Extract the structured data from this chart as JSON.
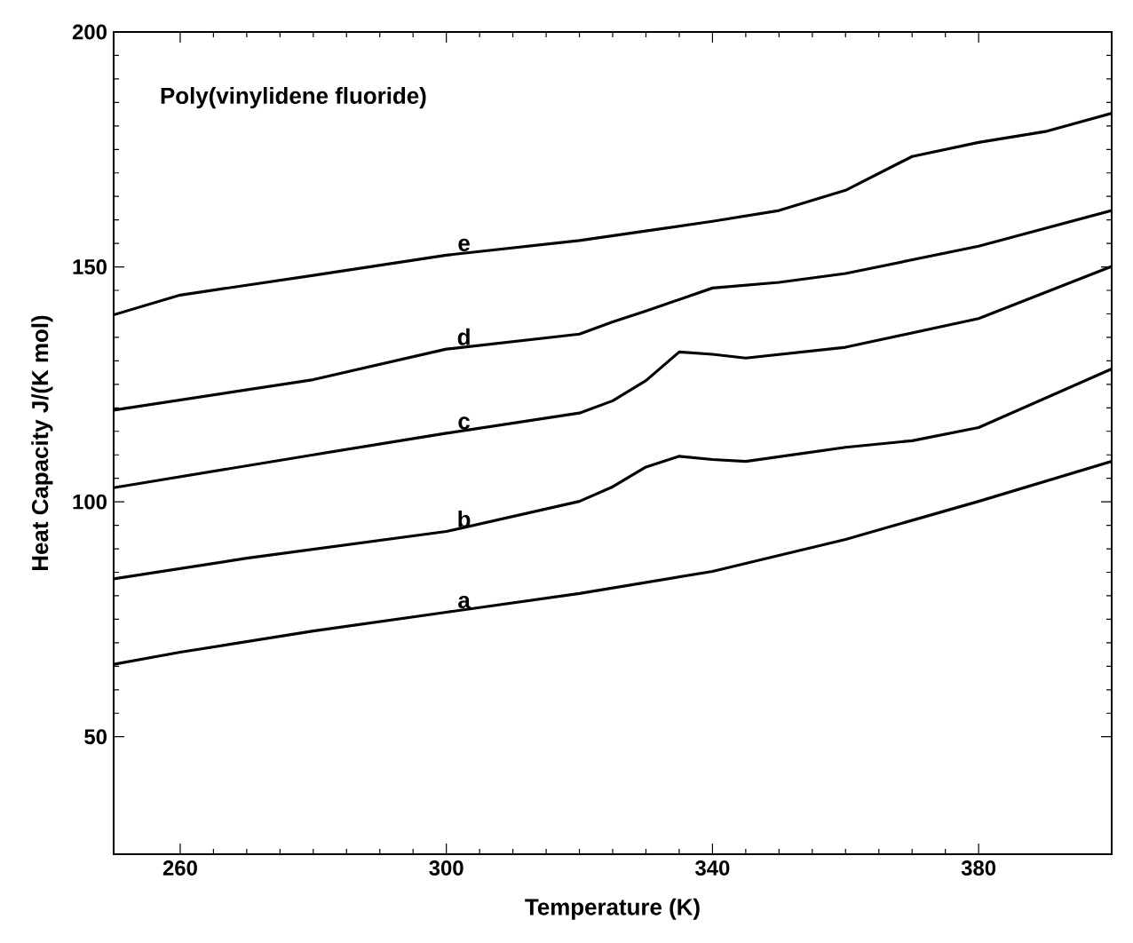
{
  "chart_data": {
    "type": "line",
    "title": "Poly(vinylidene fluoride)",
    "xlabel": "Temperature  (K)",
    "ylabel": "Heat  Capacity  J/(K mol)",
    "xlim": [
      250,
      400
    ],
    "xticks": [
      260,
      300,
      340,
      380
    ],
    "ylim": [
      25,
      200
    ],
    "yticks": [
      50,
      100,
      150,
      200
    ],
    "grid": false,
    "marker": "none",
    "line_style": "solid",
    "series": [
      {
        "name": "a",
        "color": "#000000",
        "x": [
          250,
          260,
          280,
          300,
          320,
          340,
          360,
          380,
          400
        ],
        "values": [
          65.4,
          68,
          72.5,
          76.5,
          80.5,
          85.2,
          92,
          100.1,
          108.6
        ]
      },
      {
        "name": "b",
        "color": "#000000",
        "x": [
          250,
          270,
          300,
          320,
          325,
          330,
          335,
          340,
          345,
          360,
          370,
          380,
          400
        ],
        "values": [
          83.6,
          88,
          93.7,
          100.1,
          103.2,
          107.4,
          109.7,
          109,
          108.6,
          111.6,
          113,
          115.8,
          128.3
        ]
      },
      {
        "name": "c",
        "color": "#000000",
        "x": [
          250,
          280,
          300,
          320,
          325,
          330,
          335,
          340,
          345,
          360,
          380,
          400
        ],
        "values": [
          103,
          110,
          114.6,
          118.9,
          121.5,
          125.8,
          131.9,
          131.4,
          130.6,
          132.9,
          139,
          150.1
        ]
      },
      {
        "name": "d",
        "color": "#000000",
        "x": [
          250,
          280,
          300,
          320,
          325,
          330,
          340,
          350,
          360,
          380,
          400
        ],
        "values": [
          119.5,
          126,
          132.5,
          135.7,
          138.3,
          140.6,
          145.5,
          146.7,
          148.6,
          154.4,
          162
        ]
      },
      {
        "name": "e",
        "color": "#000000",
        "x": [
          250,
          260,
          280,
          300,
          320,
          340,
          350,
          360,
          370,
          380,
          390,
          400
        ],
        "values": [
          139.8,
          144,
          148.2,
          152.5,
          155.6,
          159.7,
          162,
          166.3,
          173.5,
          176.5,
          178.8,
          182.7
        ]
      }
    ]
  }
}
